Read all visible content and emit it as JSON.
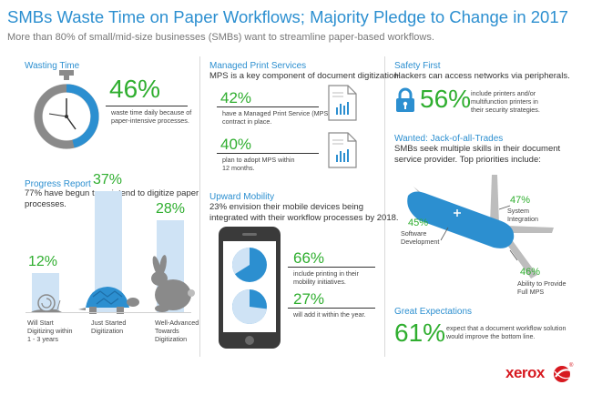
{
  "header": {
    "title": "SMBs Waste Time on Paper Workflows; Majority Pledge to Change in 2017",
    "subtitle": "More than 80% of small/mid-size businesses (SMBs) want to streamline paper-based workflows."
  },
  "wasting_time": {
    "heading": "Wasting Time",
    "value": "46%",
    "fraction": 0.46,
    "caption_line1": "waste time daily because of",
    "caption_line2": "paper-intensive processes.",
    "icon": "stopwatch-icon"
  },
  "progress_report": {
    "heading": "Progress Report",
    "text_line1": "77% have begun to or intend to digitize paper",
    "text_line2": "processes.",
    "bars": [
      {
        "value": "12%",
        "fraction": 0.12,
        "label_lines": [
          "Will Start",
          "Digitizing within",
          "1 - 3 years"
        ],
        "icon": "snail-icon"
      },
      {
        "value": "37%",
        "fraction": 0.37,
        "label_lines": [
          "Just Started",
          "Digitization"
        ],
        "icon": "turtle-icon"
      },
      {
        "value": "28%",
        "fraction": 0.28,
        "label_lines": [
          "Well-Advanced",
          "Towards",
          "Digitization"
        ],
        "icon": "rabbit-icon"
      }
    ]
  },
  "managed_print": {
    "heading": "Managed Print Services",
    "text": "MPS is a key component of document digitization.",
    "stats": [
      {
        "value": "42%",
        "caption_lines": [
          "have a Managed Print Service (MPS)",
          "contract in place."
        ],
        "icon": "document-chart-icon"
      },
      {
        "value": "40%",
        "caption_lines": [
          "plan to adopt MPS within",
          "12 months."
        ],
        "icon": "document-chart-icon"
      }
    ]
  },
  "upward_mobility": {
    "heading": "Upward Mobility",
    "text_line1": "23% envision their mobile devices being",
    "text_line2": "integrated with their workflow processes by 2018.",
    "stats": [
      {
        "value": "66%",
        "fraction": 0.66,
        "caption_lines": [
          "include printing in their",
          "mobility initiatives."
        ]
      },
      {
        "value": "27%",
        "fraction": 0.27,
        "caption_lines": [
          "will add it within the year."
        ]
      }
    ],
    "icon": "smartphone-icon"
  },
  "safety_first": {
    "heading": "Safety First",
    "text": "Hackers can access networks via peripherals.",
    "value": "56%",
    "caption_lines": [
      "include printers and/or",
      "multifunction printers in",
      "their security strategies."
    ],
    "icon": "padlock-icon"
  },
  "jack_of_all_trades": {
    "heading": "Wanted: Jack-of-all-Trades",
    "text_lines": [
      "SMBs seek multiple skills in their document",
      "service provider. Top priorities include:"
    ],
    "items": [
      {
        "value": "45%",
        "label_lines": [
          "Software",
          "Development"
        ]
      },
      {
        "value": "47%",
        "label_lines": [
          "System",
          "Integration"
        ]
      },
      {
        "value": "46%",
        "label_lines": [
          "Ability to Provide",
          "Full MPS"
        ]
      }
    ],
    "icon": "swiss-army-knife-icon"
  },
  "great_expectations": {
    "heading": "Great Expectations",
    "value": "61%",
    "caption_lines": [
      "expect that a document workflow solution",
      "would improve the bottom line."
    ]
  },
  "brand": {
    "name": "xerox",
    "symbol": "®",
    "icon": "xerox-logo-icon"
  },
  "colors": {
    "blue": "#2c8fd0",
    "green": "#2fae2f",
    "light_blue": "#cfe3f5",
    "gray": "#8a8a8a",
    "red": "#d71920"
  }
}
